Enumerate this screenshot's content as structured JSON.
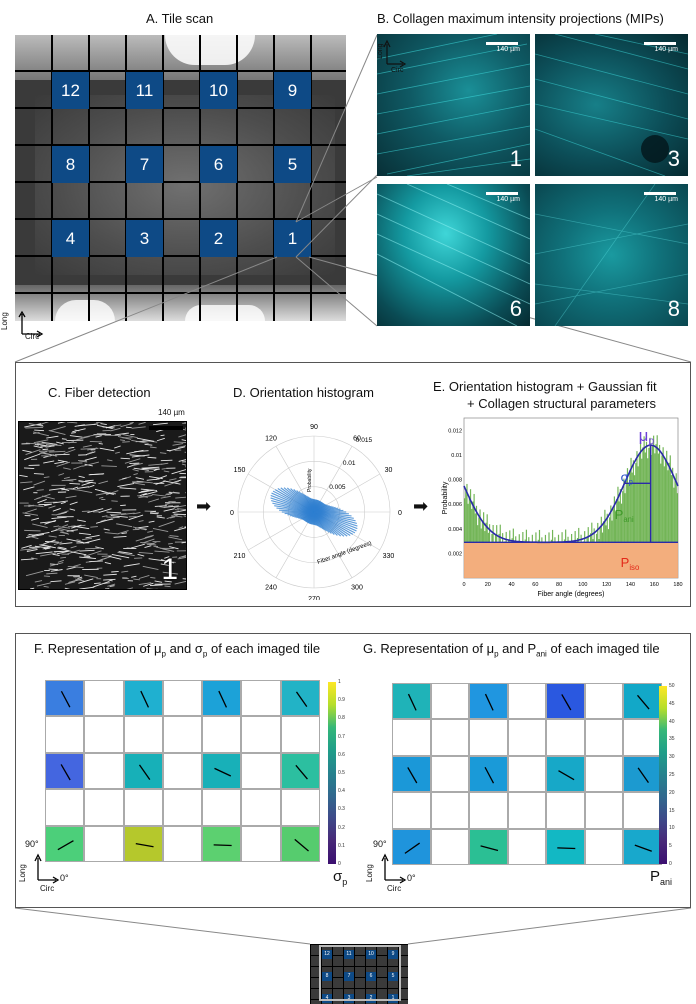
{
  "panel_a": {
    "title": "A. Tile scan",
    "tiles": [
      "12",
      "11",
      "10",
      "9",
      "8",
      "7",
      "6",
      "5",
      "4",
      "3",
      "2",
      "1"
    ],
    "axis_long": "Long",
    "axis_circ": "Circ"
  },
  "panel_b": {
    "title": "B. Collagen maximum intensity projections (MIPs)",
    "scale": "140 µm",
    "mips": [
      "1",
      "3",
      "6",
      "8"
    ],
    "axis_long": "Long",
    "axis_circ": "Circ",
    "color": "#1fc6c9"
  },
  "panel_c": {
    "title": "C. Fiber detection",
    "scale": "140 µm",
    "tile": "1"
  },
  "panel_d": {
    "title": "D. Orientation histogram",
    "angles": [
      "90",
      "60",
      "30",
      "0",
      "330",
      "300",
      "270",
      "240",
      "210",
      "180",
      "150",
      "120"
    ],
    "radial_ticks": [
      "0.015",
      "0.01",
      "0.005"
    ],
    "radial_label": "Probability",
    "angle_label": "Fiber angle (degrees)"
  },
  "panel_e": {
    "title_line1": "E. Orientation histogram + Gaussian fit",
    "title_line2": "+ Collagen structural parameters",
    "ylabel": "Probability",
    "xlabel": "Fiber angle (degrees)",
    "mu": "μ",
    "mu_sub": "p",
    "sigma": "σ",
    "sigma_sub": "p",
    "pani": "P",
    "pani_sub": "ani",
    "piso": "P",
    "piso_sub": "iso"
  },
  "chart_data": {
    "type": "bar",
    "xlabel": "Fiber angle (degrees)",
    "ylabel": "Probability",
    "xlim": [
      0,
      180
    ],
    "ylim": [
      0,
      0.013
    ],
    "x_ticks": [
      0,
      20,
      40,
      60,
      80,
      100,
      120,
      140,
      160,
      180
    ],
    "y_ticks": [
      0.002,
      0.004,
      0.006,
      0.008,
      0.01,
      0.012
    ],
    "iso_level": 0.0029,
    "gaussian": {
      "mu": 157,
      "sigma": 22,
      "peak": 0.0108
    },
    "colors": {
      "iso": "#f2a56f",
      "ani": "#5aa83a",
      "fit": "#2a2aa8",
      "mu": "#6a3fd6",
      "sigma": "#2a4fc8",
      "pani_text": "#3f9a2a",
      "piso_text": "#e32a1a"
    }
  },
  "panel_f": {
    "title_pre": "Representation of μ",
    "title_mid": "and σ",
    "title_post": "of each imaged tile",
    "letter": "F.",
    "cbar_label": "σ",
    "cbar_sub": "p",
    "cbar_ticks": [
      "1",
      "0.9",
      "0.8",
      "0.7",
      "0.6",
      "0.5",
      "0.4",
      "0.3",
      "0.2",
      "0.1",
      "0"
    ],
    "axis_long": "Long",
    "axis_circ": "Circ",
    "deg90": "90°",
    "deg0": "0°"
  },
  "panel_g": {
    "title_pre": "Representation of μ",
    "title_mid": "and P",
    "title_post": "of each imaged tile",
    "letter": "G.",
    "cbar_label": "P",
    "cbar_sub": "ani",
    "cbar_ticks": [
      "50",
      "45",
      "40",
      "35",
      "30",
      "25",
      "20",
      "15",
      "10",
      "5",
      "0"
    ],
    "axis_long": "Long",
    "axis_circ": "Circ",
    "deg90": "90°",
    "deg0": "0°"
  },
  "thumb_tiles": [
    "12",
    "11",
    "10",
    "9",
    "8",
    "7",
    "6",
    "5",
    "4",
    "3",
    "2",
    "1"
  ]
}
